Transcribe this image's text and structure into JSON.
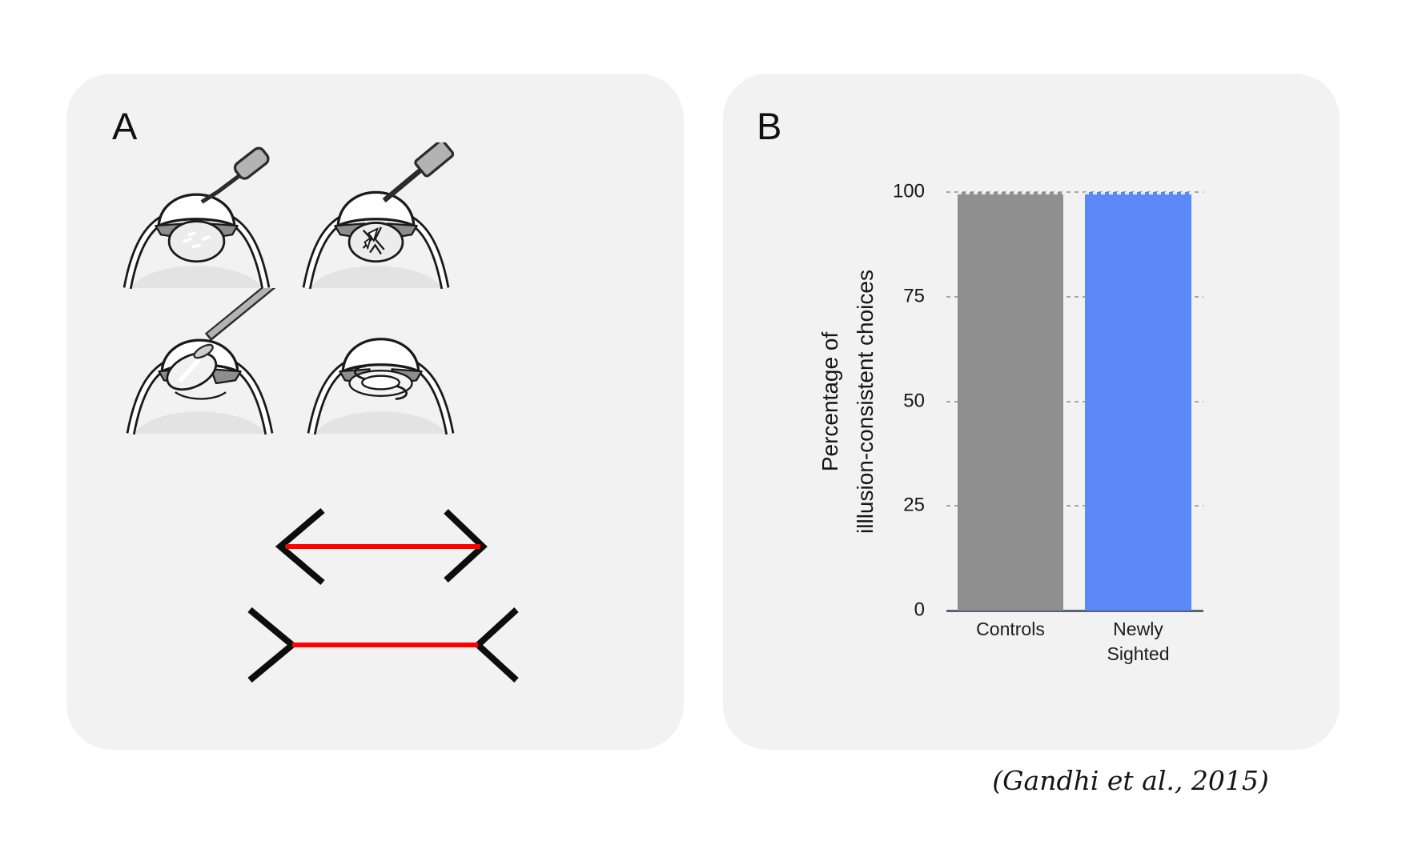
{
  "panel_a": {
    "label": "A",
    "diagram_icons": [
      "eye-cross-section-incision-blade",
      "eye-cross-section-lens-fragmentation-needle",
      "eye-cross-section-lens-extraction-spatula",
      "eye-cross-section-intraocular-lens-implant"
    ],
    "illusion": {
      "top_figure": "red line with outward arrowheads",
      "bottom_figure": "red line with outward fins",
      "line_color": "#fe0000",
      "fin_color": "#0d0d0d"
    }
  },
  "panel_b": {
    "label": "B"
  },
  "chart_data": {
    "type": "bar",
    "categories": [
      "Controls",
      "Newly\nSighted"
    ],
    "values": [
      100,
      100
    ],
    "bar_colors": [
      "#8f8f8f",
      "#5b89f7"
    ],
    "ylabel_lines": [
      "Percentage of",
      "illlusion-consistent choices"
    ],
    "yticks": [
      0,
      25,
      50,
      75,
      100
    ],
    "ylim": [
      0,
      100
    ],
    "grid": "dashed-horizontal",
    "legend": "none",
    "title": ""
  },
  "caption": "(Gandhi et al., 2015)",
  "theme": {
    "page_bg": "#ffffff",
    "card_bg": "#f2f2f3",
    "axis_color": "#566377",
    "gridline_color": "#a6a6a6",
    "text_color": "#1a1a1a"
  }
}
